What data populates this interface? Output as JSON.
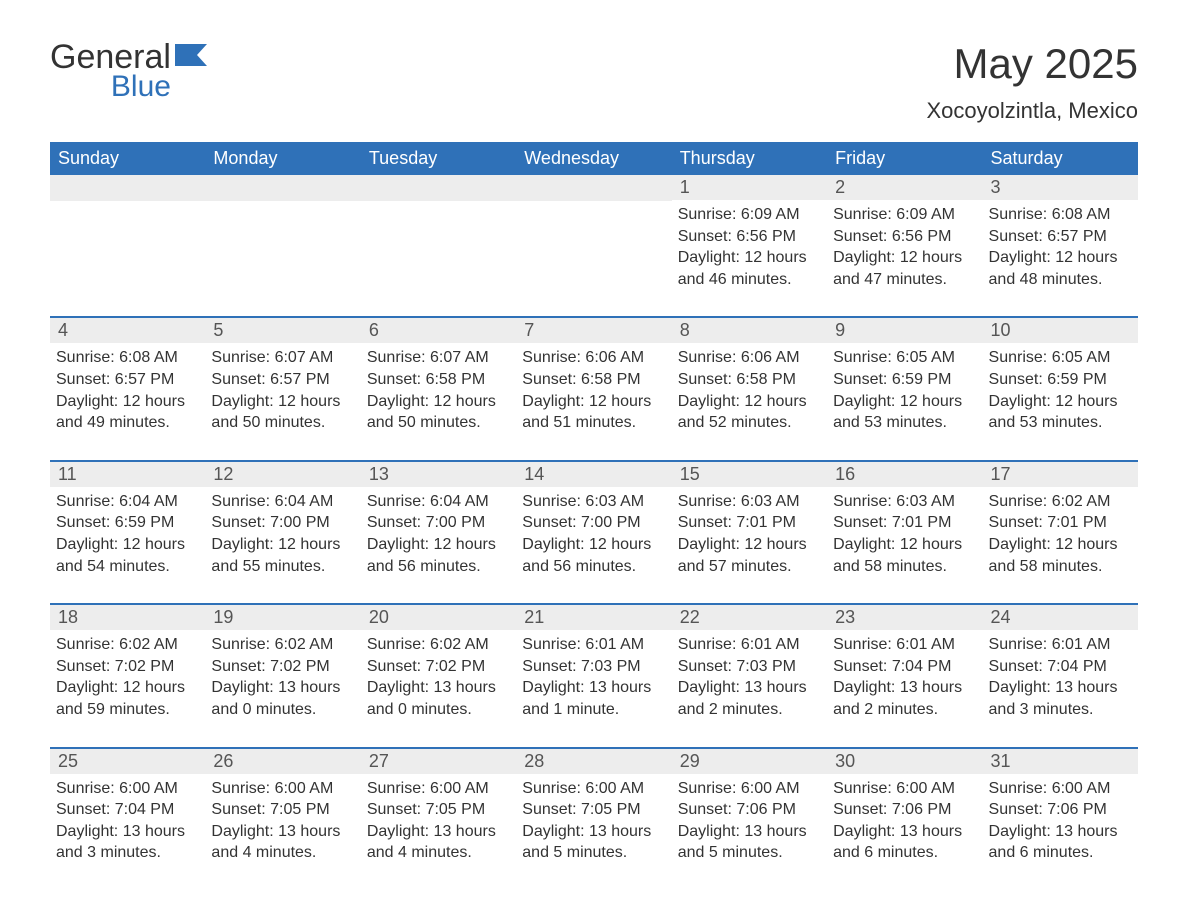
{
  "logo": {
    "word1": "General",
    "word2": "Blue",
    "flag_color": "#2f71b8"
  },
  "header": {
    "month_title": "May 2025",
    "location": "Xocoyolzintla, Mexico"
  },
  "colors": {
    "header_bg": "#2f71b8",
    "header_text": "#ffffff",
    "daynum_bg": "#ededed",
    "text": "#333333",
    "page_bg": "#ffffff"
  },
  "weekdays": [
    "Sunday",
    "Monday",
    "Tuesday",
    "Wednesday",
    "Thursday",
    "Friday",
    "Saturday"
  ],
  "layout": {
    "columns": 7,
    "rows": 5,
    "first_day_index": 4
  },
  "days": [
    {
      "n": 1,
      "sunrise": "6:09 AM",
      "sunset": "6:56 PM",
      "daylight": "12 hours and 46 minutes."
    },
    {
      "n": 2,
      "sunrise": "6:09 AM",
      "sunset": "6:56 PM",
      "daylight": "12 hours and 47 minutes."
    },
    {
      "n": 3,
      "sunrise": "6:08 AM",
      "sunset": "6:57 PM",
      "daylight": "12 hours and 48 minutes."
    },
    {
      "n": 4,
      "sunrise": "6:08 AM",
      "sunset": "6:57 PM",
      "daylight": "12 hours and 49 minutes."
    },
    {
      "n": 5,
      "sunrise": "6:07 AM",
      "sunset": "6:57 PM",
      "daylight": "12 hours and 50 minutes."
    },
    {
      "n": 6,
      "sunrise": "6:07 AM",
      "sunset": "6:58 PM",
      "daylight": "12 hours and 50 minutes."
    },
    {
      "n": 7,
      "sunrise": "6:06 AM",
      "sunset": "6:58 PM",
      "daylight": "12 hours and 51 minutes."
    },
    {
      "n": 8,
      "sunrise": "6:06 AM",
      "sunset": "6:58 PM",
      "daylight": "12 hours and 52 minutes."
    },
    {
      "n": 9,
      "sunrise": "6:05 AM",
      "sunset": "6:59 PM",
      "daylight": "12 hours and 53 minutes."
    },
    {
      "n": 10,
      "sunrise": "6:05 AM",
      "sunset": "6:59 PM",
      "daylight": "12 hours and 53 minutes."
    },
    {
      "n": 11,
      "sunrise": "6:04 AM",
      "sunset": "6:59 PM",
      "daylight": "12 hours and 54 minutes."
    },
    {
      "n": 12,
      "sunrise": "6:04 AM",
      "sunset": "7:00 PM",
      "daylight": "12 hours and 55 minutes."
    },
    {
      "n": 13,
      "sunrise": "6:04 AM",
      "sunset": "7:00 PM",
      "daylight": "12 hours and 56 minutes."
    },
    {
      "n": 14,
      "sunrise": "6:03 AM",
      "sunset": "7:00 PM",
      "daylight": "12 hours and 56 minutes."
    },
    {
      "n": 15,
      "sunrise": "6:03 AM",
      "sunset": "7:01 PM",
      "daylight": "12 hours and 57 minutes."
    },
    {
      "n": 16,
      "sunrise": "6:03 AM",
      "sunset": "7:01 PM",
      "daylight": "12 hours and 58 minutes."
    },
    {
      "n": 17,
      "sunrise": "6:02 AM",
      "sunset": "7:01 PM",
      "daylight": "12 hours and 58 minutes."
    },
    {
      "n": 18,
      "sunrise": "6:02 AM",
      "sunset": "7:02 PM",
      "daylight": "12 hours and 59 minutes."
    },
    {
      "n": 19,
      "sunrise": "6:02 AM",
      "sunset": "7:02 PM",
      "daylight": "13 hours and 0 minutes."
    },
    {
      "n": 20,
      "sunrise": "6:02 AM",
      "sunset": "7:02 PM",
      "daylight": "13 hours and 0 minutes."
    },
    {
      "n": 21,
      "sunrise": "6:01 AM",
      "sunset": "7:03 PM",
      "daylight": "13 hours and 1 minute."
    },
    {
      "n": 22,
      "sunrise": "6:01 AM",
      "sunset": "7:03 PM",
      "daylight": "13 hours and 2 minutes."
    },
    {
      "n": 23,
      "sunrise": "6:01 AM",
      "sunset": "7:04 PM",
      "daylight": "13 hours and 2 minutes."
    },
    {
      "n": 24,
      "sunrise": "6:01 AM",
      "sunset": "7:04 PM",
      "daylight": "13 hours and 3 minutes."
    },
    {
      "n": 25,
      "sunrise": "6:00 AM",
      "sunset": "7:04 PM",
      "daylight": "13 hours and 3 minutes."
    },
    {
      "n": 26,
      "sunrise": "6:00 AM",
      "sunset": "7:05 PM",
      "daylight": "13 hours and 4 minutes."
    },
    {
      "n": 27,
      "sunrise": "6:00 AM",
      "sunset": "7:05 PM",
      "daylight": "13 hours and 4 minutes."
    },
    {
      "n": 28,
      "sunrise": "6:00 AM",
      "sunset": "7:05 PM",
      "daylight": "13 hours and 5 minutes."
    },
    {
      "n": 29,
      "sunrise": "6:00 AM",
      "sunset": "7:06 PM",
      "daylight": "13 hours and 5 minutes."
    },
    {
      "n": 30,
      "sunrise": "6:00 AM",
      "sunset": "7:06 PM",
      "daylight": "13 hours and 6 minutes."
    },
    {
      "n": 31,
      "sunrise": "6:00 AM",
      "sunset": "7:06 PM",
      "daylight": "13 hours and 6 minutes."
    }
  ],
  "labels": {
    "sunrise": "Sunrise:",
    "sunset": "Sunset:",
    "daylight": "Daylight:"
  }
}
